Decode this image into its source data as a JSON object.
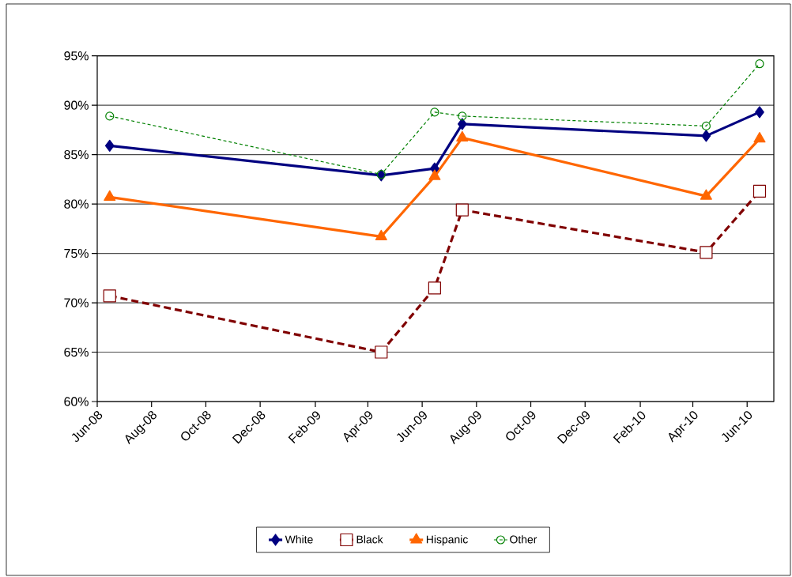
{
  "chart_data": {
    "type": "line",
    "x": [
      "2008-06-15",
      "2009-04-16",
      "2009-06-15",
      "2009-07-16",
      "2010-04-16",
      "2010-06-15"
    ],
    "series": [
      {
        "name": "White",
        "color": "#000080",
        "marker": "diamond",
        "line_style": "solid",
        "values": [
          85.9,
          82.9,
          83.6,
          88.1,
          86.9,
          89.3
        ]
      },
      {
        "name": "Black",
        "color": "#800000",
        "marker": "square",
        "line_style": "dashed",
        "values": [
          70.7,
          65.0,
          71.5,
          79.4,
          75.1,
          81.3
        ]
      },
      {
        "name": "Hispanic",
        "color": "#ff6600",
        "marker": "triangle",
        "line_style": "solid",
        "values": [
          80.7,
          76.7,
          82.8,
          86.7,
          80.8,
          86.6
        ]
      },
      {
        "name": "Other",
        "color": "#008000",
        "marker": "circle",
        "line_style": "dashed",
        "values": [
          88.9,
          83.0,
          89.3,
          88.9,
          87.9,
          94.2
        ]
      }
    ],
    "xlim": [
      "2008-06-01",
      "2010-07-01"
    ],
    "xticks": [
      {
        "value": "2008-06-01",
        "label": "Jun-08"
      },
      {
        "value": "2008-08-01",
        "label": "Aug-08"
      },
      {
        "value": "2008-10-01",
        "label": "Oct-08"
      },
      {
        "value": "2008-12-01",
        "label": "Dec-08"
      },
      {
        "value": "2009-02-01",
        "label": "Feb-09"
      },
      {
        "value": "2009-04-01",
        "label": "Apr-09"
      },
      {
        "value": "2009-06-01",
        "label": "Jun-09"
      },
      {
        "value": "2009-08-01",
        "label": "Aug-09"
      },
      {
        "value": "2009-10-01",
        "label": "Oct-09"
      },
      {
        "value": "2009-12-01",
        "label": "Dec-09"
      },
      {
        "value": "2010-02-01",
        "label": "Feb-10"
      },
      {
        "value": "2010-04-01",
        "label": "Apr-10"
      },
      {
        "value": "2010-06-01",
        "label": "Jun-10"
      }
    ],
    "ylim": [
      60,
      95
    ],
    "yticks": [
      {
        "value": 60,
        "label": "60%"
      },
      {
        "value": 65,
        "label": "65%"
      },
      {
        "value": 70,
        "label": "70%"
      },
      {
        "value": 75,
        "label": "75%"
      },
      {
        "value": 80,
        "label": "80%"
      },
      {
        "value": 85,
        "label": "85%"
      },
      {
        "value": 90,
        "label": "90%"
      },
      {
        "value": 95,
        "label": "95%"
      }
    ],
    "grid": "y",
    "legend": "bottom"
  }
}
